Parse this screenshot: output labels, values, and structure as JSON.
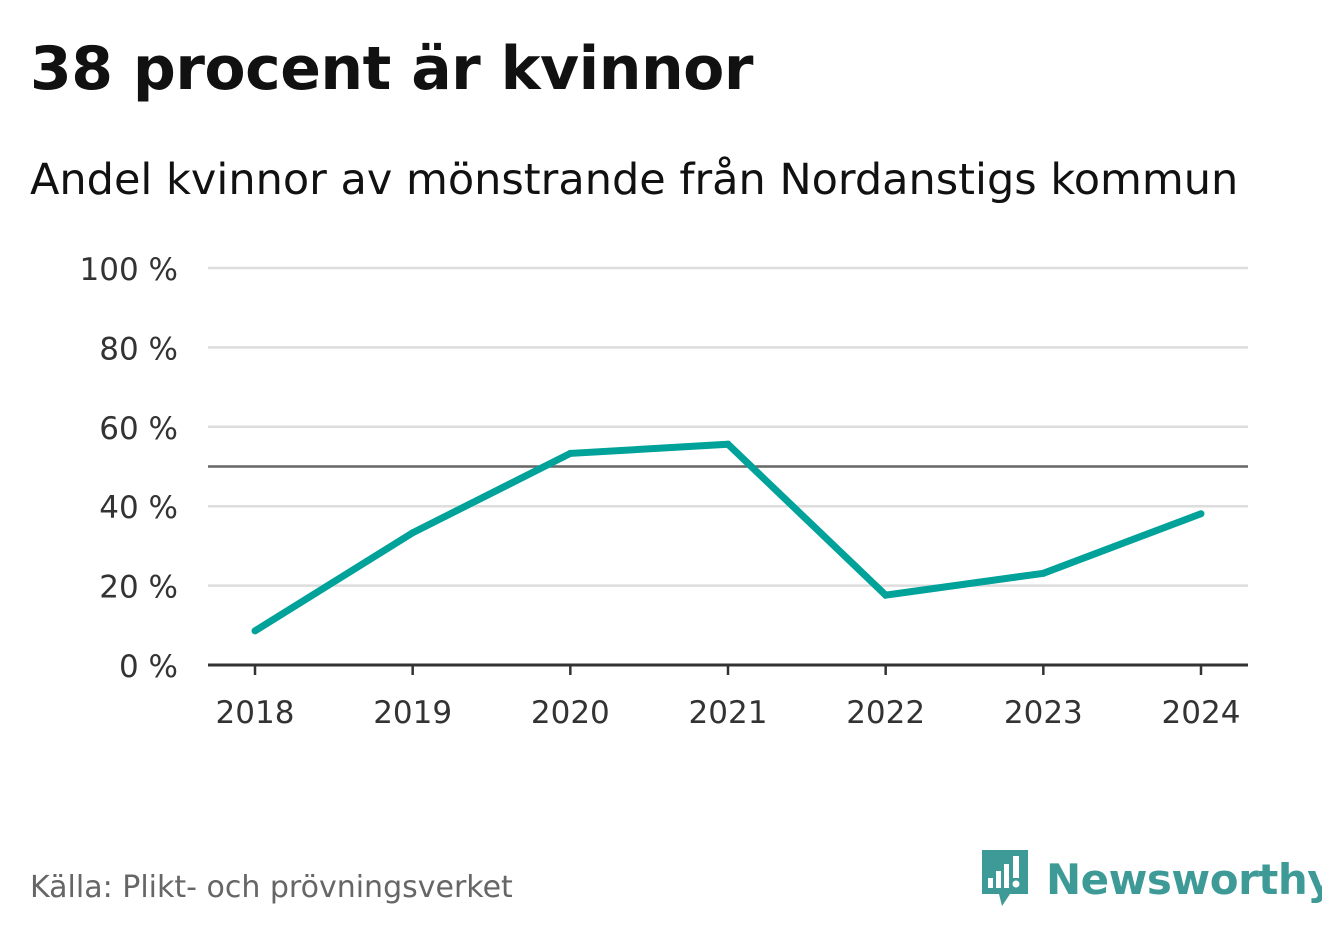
{
  "title": "38 procent är kvinnor",
  "subtitle": "Andel kvinnor av mönstrande från Nordanstigs kommun",
  "source": "Källa: Plikt- och prövningsverket",
  "brand": {
    "name": "Newsworthy",
    "icon": "newsworthy-logo-icon",
    "color": "#3e9a96"
  },
  "colors": {
    "line": "#00a29a",
    "grid": "#dddddd",
    "reference": "#666666",
    "axis": "#333333",
    "text": "#333333"
  },
  "chart_data": {
    "type": "line",
    "x": [
      "2018",
      "2019",
      "2020",
      "2021",
      "2022",
      "2023",
      "2024"
    ],
    "series": [
      {
        "values": [
          8.6,
          33.3,
          53.3,
          55.6,
          17.6,
          23.1,
          38.1
        ]
      }
    ],
    "ylim": [
      0,
      100
    ],
    "yticks": [
      0,
      20,
      40,
      60,
      80,
      100
    ],
    "ytick_labels": [
      "0 %",
      "20 %",
      "40 %",
      "60 %",
      "80 %",
      "100 %"
    ],
    "reference_line": 50,
    "grid": true,
    "xlabel": "",
    "ylabel": ""
  }
}
